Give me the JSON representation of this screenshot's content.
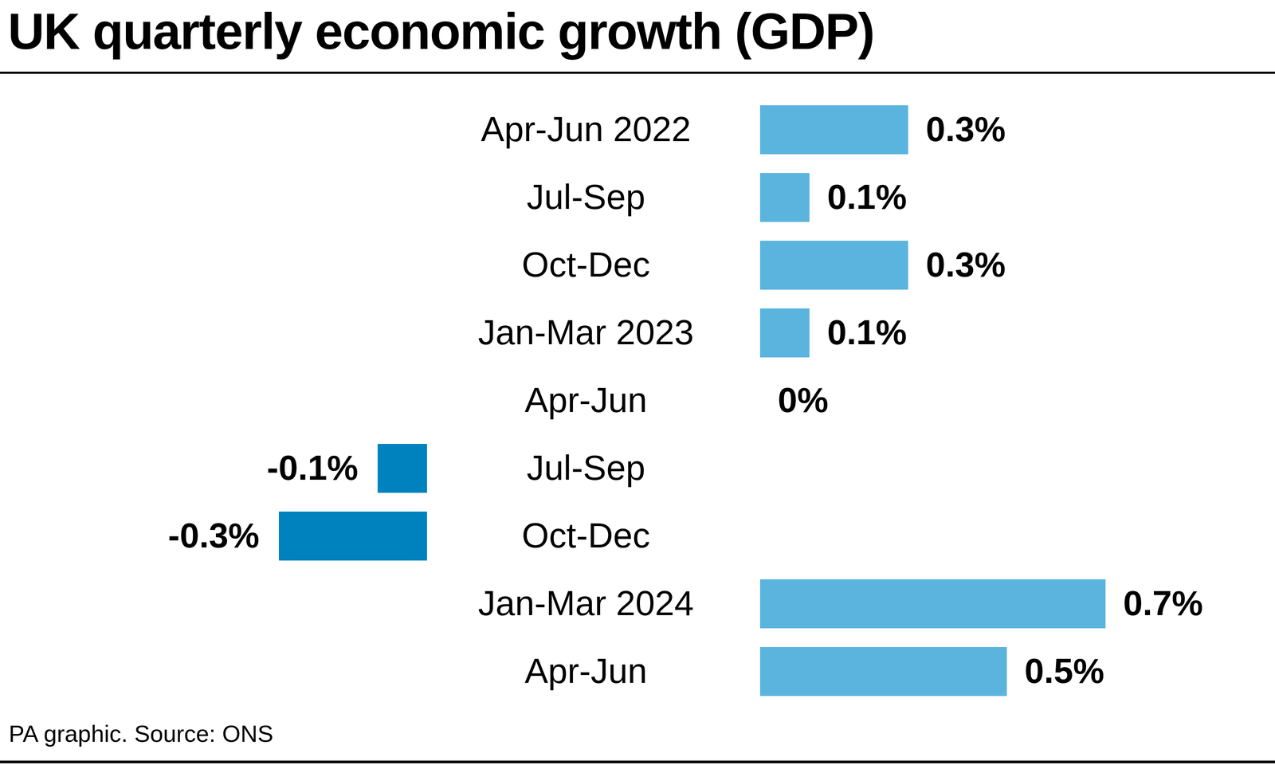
{
  "chart_data": {
    "type": "bar",
    "orientation": "horizontal",
    "title": "UK quarterly economic growth (GDP)",
    "caption": "PA graphic. Source: ONS",
    "categories": [
      "Apr-Jun 2022",
      "Jul-Sep",
      "Oct-Dec",
      "Jan-Mar 2023",
      "Apr-Jun",
      "Jul-Sep",
      "Oct-Dec",
      "Jan-Mar 2024",
      "Apr-Jun"
    ],
    "values": [
      0.3,
      0.1,
      0.3,
      0.1,
      0,
      -0.1,
      -0.3,
      0.7,
      0.5
    ],
    "value_labels": [
      "0.3%",
      "0.1%",
      "0.3%",
      "0.1%",
      "0%",
      "-0.1%",
      "-0.3%",
      "0.7%",
      "0.5%"
    ],
    "colors": [
      "#5ab4de",
      "#5ab4de",
      "#5ab4de",
      "#5ab4de",
      "#5ab4de",
      "#0082be",
      "#0082be",
      "#5ab4de",
      "#5ab4de"
    ],
    "xlim": [
      -0.4,
      1.0
    ],
    "data_labels": true,
    "tick_labels": "y",
    "grid": false
  }
}
